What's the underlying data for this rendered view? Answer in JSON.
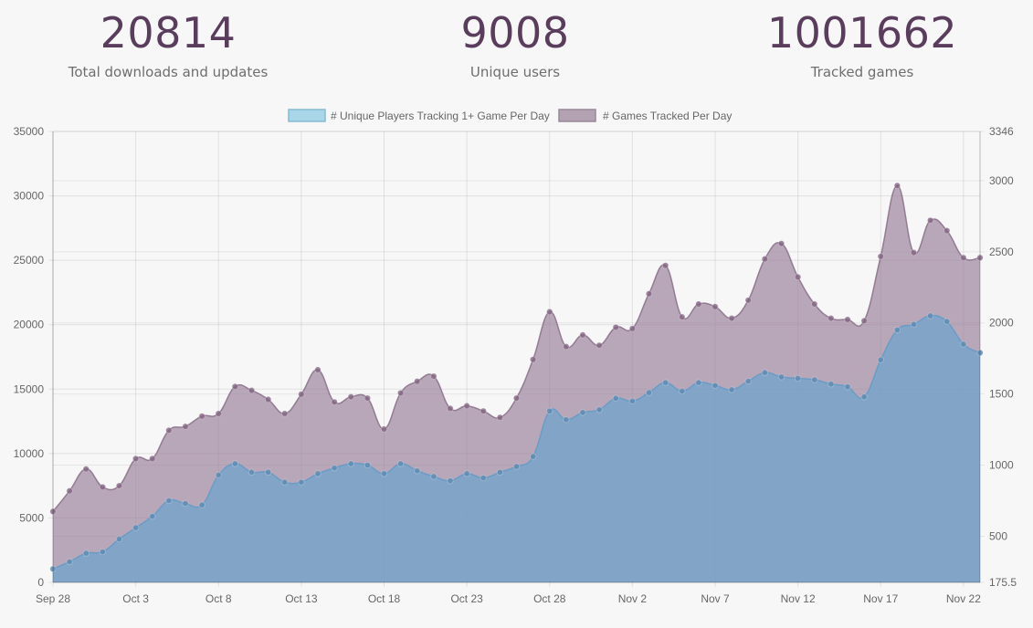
{
  "stats": [
    {
      "value": "20814",
      "label": "Total downloads and updates"
    },
    {
      "value": "9008",
      "label": "Unique users"
    },
    {
      "value": "1001662",
      "label": "Tracked games"
    }
  ],
  "chart_data": {
    "type": "area",
    "title": "",
    "legend": [
      {
        "label": "# Unique Players Tracking 1+ Game Per Day",
        "fill": "#a9d6e8",
        "stroke": "#86bcd3"
      },
      {
        "label": "# Games Tracked Per Day",
        "fill": "#b3a2b1",
        "stroke": "#9a8899"
      }
    ],
    "legend_position": "top-center",
    "x_tick_labels": [
      "Sep 28",
      "Oct 3",
      "Oct 8",
      "Oct 13",
      "Oct 18",
      "Oct 23",
      "Oct 28",
      "Nov 2",
      "Nov 7",
      "Nov 12",
      "Nov 17",
      "Nov 22"
    ],
    "x_tick_indices": [
      0,
      5,
      10,
      15,
      20,
      25,
      30,
      35,
      40,
      45,
      50,
      55
    ],
    "left_axis": {
      "ylim": [
        0,
        35000
      ],
      "ticks": [
        "0",
        "5000",
        "10000",
        "15000",
        "20000",
        "25000",
        "30000",
        "35000"
      ],
      "tick_values": [
        0,
        5000,
        10000,
        15000,
        20000,
        25000,
        30000,
        35000
      ]
    },
    "right_axis": {
      "ylim": [
        175.5,
        3346
      ],
      "ticks": [
        "175.5",
        "500",
        "1000",
        "1500",
        "2000",
        "2500",
        "3000",
        "3346"
      ],
      "tick_values": [
        175.5,
        500,
        1000,
        1500,
        2000,
        2500,
        3000,
        3346
      ]
    },
    "series": [
      {
        "name": "# Games Tracked Per Day",
        "axis": "left",
        "values": [
          5500,
          7100,
          8800,
          7400,
          7500,
          9600,
          9600,
          11800,
          12100,
          12900,
          13100,
          15200,
          14900,
          14200,
          13100,
          14600,
          16500,
          14000,
          14400,
          14300,
          11900,
          14700,
          15600,
          16000,
          13500,
          13700,
          13300,
          12800,
          14300,
          17300,
          21000,
          18300,
          19200,
          18400,
          19800,
          19700,
          22400,
          24600,
          20600,
          21600,
          21400,
          20500,
          21900,
          25100,
          26300,
          23700,
          21600,
          20500,
          20400,
          20300,
          25300,
          30800,
          25600,
          28100,
          27300,
          25200,
          25200
        ]
      },
      {
        "name": "# Unique Players Tracking 1+ Game Per Day",
        "axis": "right",
        "values": [
          270,
          320,
          380,
          390,
          480,
          560,
          640,
          750,
          730,
          720,
          930,
          1010,
          950,
          950,
          880,
          880,
          940,
          980,
          1010,
          1000,
          940,
          1010,
          960,
          920,
          890,
          940,
          910,
          950,
          990,
          1060,
          1380,
          1320,
          1370,
          1390,
          1470,
          1450,
          1510,
          1580,
          1520,
          1580,
          1560,
          1530,
          1590,
          1650,
          1620,
          1610,
          1600,
          1570,
          1550,
          1480,
          1740,
          1950,
          1990,
          2050,
          2010,
          1850,
          1790
        ]
      }
    ]
  }
}
